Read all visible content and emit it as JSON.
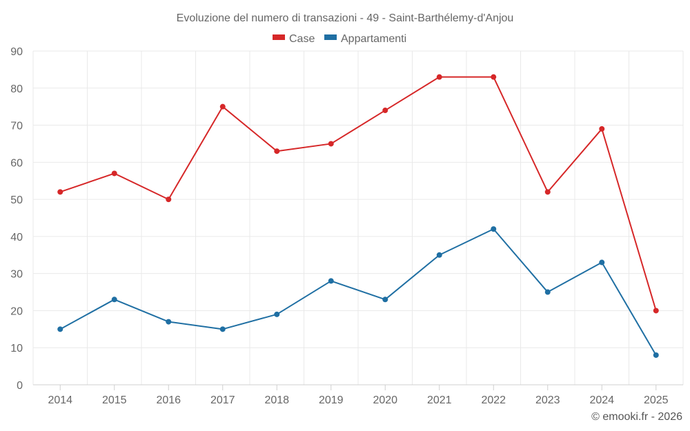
{
  "chart_data": {
    "type": "line",
    "title": "Evoluzione del numero di transazioni - 49 - Saint-Barthélemy-d'Anjou",
    "categories": [
      "2014",
      "2015",
      "2016",
      "2017",
      "2018",
      "2019",
      "2020",
      "2021",
      "2022",
      "2023",
      "2024",
      "2025"
    ],
    "series": [
      {
        "name": "Case",
        "color": "#d62728",
        "values": [
          52,
          57,
          50,
          75,
          63,
          65,
          74,
          83,
          83,
          52,
          69,
          20
        ]
      },
      {
        "name": "Appartamenti",
        "color": "#1f6fa3",
        "values": [
          15,
          23,
          17,
          15,
          19,
          28,
          23,
          35,
          42,
          25,
          33,
          8
        ]
      }
    ],
    "ylim": [
      0,
      90
    ],
    "yticks": [
      0,
      10,
      20,
      30,
      40,
      50,
      60,
      70,
      80,
      90
    ],
    "xlabel": "",
    "ylabel": "",
    "grid": true,
    "legend_position": "top-center"
  },
  "credit": "© emooki.fr - 2026"
}
